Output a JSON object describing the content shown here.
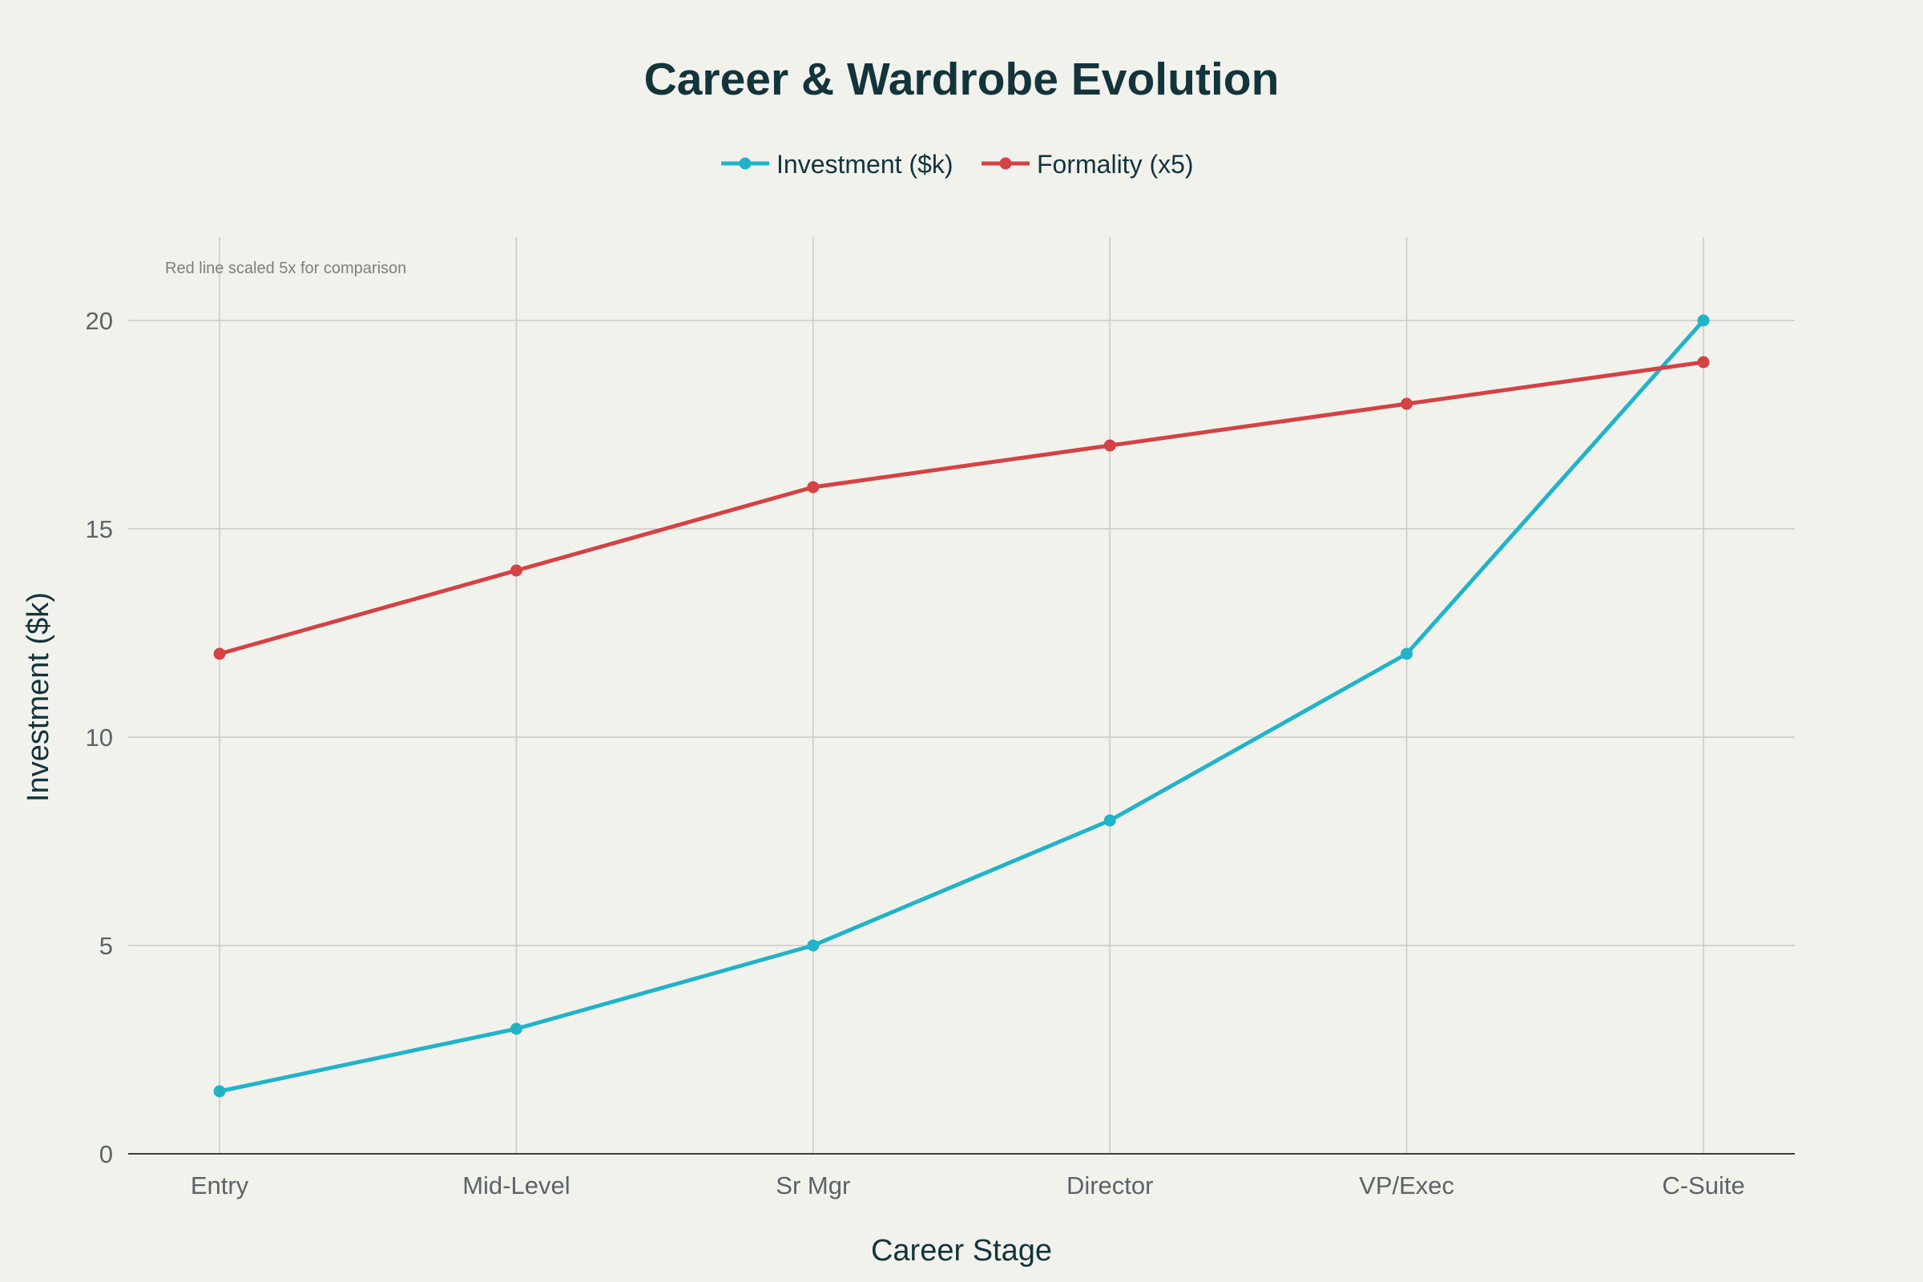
{
  "chart_data": {
    "type": "line",
    "title": "Career & Wardrobe Evolution",
    "xlabel": "Career Stage",
    "ylabel": "Investment ($k)",
    "categories": [
      "Entry",
      "Mid-Level",
      "Sr Mgr",
      "Director",
      "VP/Exec",
      "C-Suite"
    ],
    "ylim": [
      0,
      22
    ],
    "yticks": [
      0,
      5,
      10,
      15,
      20
    ],
    "grid": true,
    "legend_position": "top-center",
    "annotation": "Red line scaled 5x for comparison",
    "series": [
      {
        "name": "Investment ($k)",
        "color": "#21b3c8",
        "values": [
          1.5,
          3,
          5,
          8,
          12,
          20
        ]
      },
      {
        "name": "Formality (x5)",
        "color": "#d44244",
        "values": [
          12,
          14,
          16,
          17,
          18,
          19
        ]
      }
    ]
  }
}
